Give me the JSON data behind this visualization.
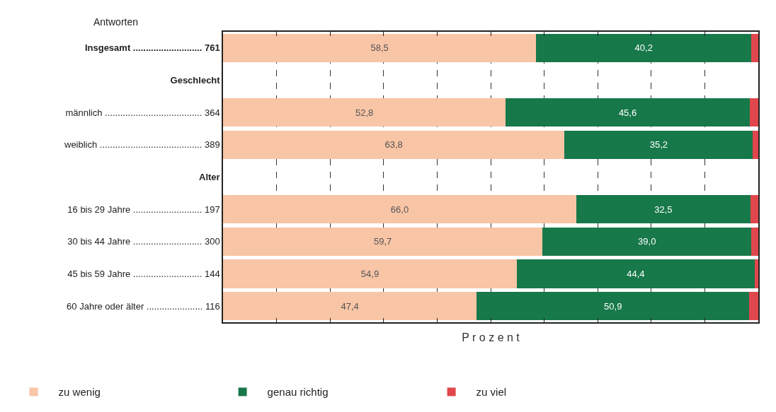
{
  "chart_data": {
    "type": "bar",
    "orientation": "horizontal",
    "stacked": true,
    "xlabel": "P r o z e n t",
    "annotations": [
      "Antworten"
    ],
    "categories": [
      "Insgesamt ........................... 761",
      "Geschlecht",
      "männlich ...................................... 364",
      "weiblich ........................................ 389",
      "Alter",
      "16 bis 29 Jahre ........................... 197",
      "30 bis 44 Jahre ........................... 300",
      "45 bis 59 Jahre ........................... 144",
      "60 Jahre oder älter ...................... 116"
    ],
    "series": [
      {
        "name": "zu wenig",
        "color": "#f8c5a6",
        "values": [
          58.5,
          null,
          52.8,
          63.8,
          null,
          66.0,
          59.7,
          54.9,
          47.4
        ],
        "value_labels": [
          "58,5",
          null,
          "52,8",
          "63,8",
          null,
          "66,0",
          "59,7",
          "54,9",
          "47,4"
        ]
      },
      {
        "name": "genau richtig",
        "color": "#17784a",
        "values": [
          40.2,
          null,
          45.6,
          35.2,
          null,
          32.5,
          39.0,
          44.4,
          50.9
        ],
        "value_labels": [
          "40,2",
          null,
          "45,6",
          "35,2",
          null,
          "32,5",
          "39,0",
          "44,4",
          "50,9"
        ]
      },
      {
        "name": "zu viel",
        "color": "#e0474c",
        "values": [
          1.3,
          null,
          1.6,
          1.0,
          null,
          1.5,
          1.3,
          0.7,
          1.7
        ]
      }
    ],
    "xlim": [
      0,
      100
    ],
    "xticks": [
      {
        "value": 0,
        "label": null
      },
      {
        "value": 10,
        "label": null
      },
      {
        "value": 20,
        "label": null
      },
      {
        "value": 30,
        "label": null
      },
      {
        "value": 40,
        "label": null
      },
      {
        "value": 50,
        "label": null
      },
      {
        "value": 60,
        "label": null
      },
      {
        "value": 70,
        "label": null
      },
      {
        "value": 80,
        "label": null
      },
      {
        "value": 90,
        "label": null
      },
      {
        "value": 100,
        "label": null
      }
    ],
    "tick_labels": "y",
    "grid": "x",
    "legend": "bottom"
  }
}
